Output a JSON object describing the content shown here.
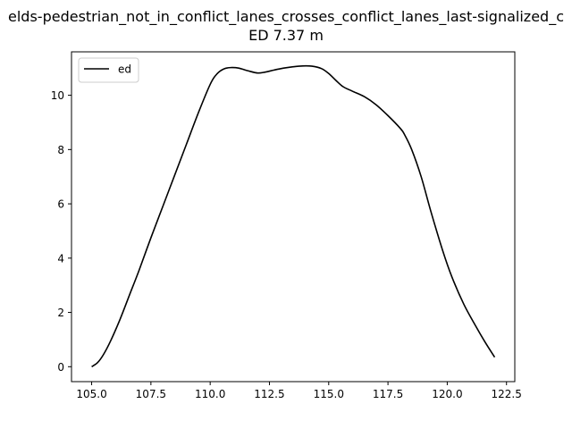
{
  "chart_data": {
    "type": "line",
    "title": "elds-pedestrian_not_in_conflict_lanes_crosses_conflict_lanes_last-signalized_c",
    "subtitle": "ED 7.37 m",
    "xlabel": "",
    "ylabel": "",
    "xlim": [
      104.15,
      122.85
    ],
    "ylim": [
      -0.55,
      11.6
    ],
    "xticks": [
      105.0,
      107.5,
      110.0,
      112.5,
      115.0,
      117.5,
      120.0,
      122.5
    ],
    "xtick_labels": [
      "105.0",
      "107.5",
      "110.0",
      "112.5",
      "115.0",
      "117.5",
      "120.0",
      "122.5"
    ],
    "yticks": [
      0,
      2,
      4,
      6,
      8,
      10
    ],
    "ytick_labels": [
      "0",
      "2",
      "4",
      "6",
      "8",
      "10"
    ],
    "grid": false,
    "legend_position": "top-left",
    "series": [
      {
        "name": "ed",
        "color": "#000000",
        "x": [
          105.0,
          105.25,
          105.5,
          105.8,
          106.2,
          106.6,
          107.0,
          107.5,
          108.0,
          108.5,
          109.0,
          109.5,
          110.0,
          110.3,
          110.6,
          110.9,
          111.2,
          111.6,
          112.0,
          112.3,
          112.7,
          113.1,
          113.5,
          113.9,
          114.3,
          114.7,
          115.0,
          115.3,
          115.6,
          116.0,
          116.5,
          117.0,
          117.5,
          118.0,
          118.2,
          118.5,
          118.9,
          119.3,
          119.8,
          120.2,
          120.7,
          121.2,
          121.6,
          122.0
        ],
        "y": [
          0.0,
          0.15,
          0.45,
          0.95,
          1.75,
          2.65,
          3.55,
          4.75,
          5.9,
          7.05,
          8.2,
          9.35,
          10.4,
          10.8,
          10.98,
          11.02,
          11.0,
          10.9,
          10.82,
          10.85,
          10.93,
          11.0,
          11.05,
          11.08,
          11.07,
          10.98,
          10.8,
          10.55,
          10.32,
          10.15,
          9.95,
          9.65,
          9.25,
          8.8,
          8.55,
          8.0,
          7.0,
          5.75,
          4.3,
          3.3,
          2.3,
          1.5,
          0.9,
          0.35
        ]
      }
    ]
  }
}
